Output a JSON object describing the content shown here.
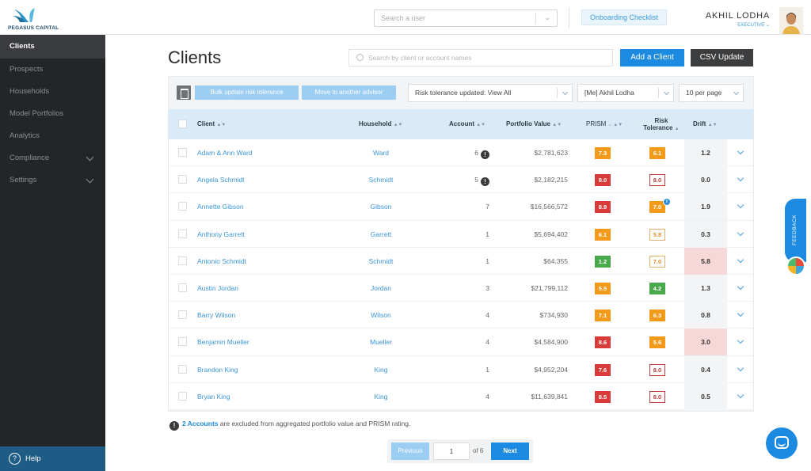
{
  "brand": {
    "name": "PEGASUS CAPITAL",
    "accent": "#1b8ae0",
    "sidebar_bg": "#242527"
  },
  "header": {
    "user_search_placeholder": "Search a user",
    "onboarding_label": "Onboarding Checklist",
    "user_name": "AKHIL LODHA",
    "user_role": "EXECUTIVE"
  },
  "sidebar": {
    "items": [
      {
        "label": "Clients",
        "active": true
      },
      {
        "label": "Prospects"
      },
      {
        "label": "Households"
      },
      {
        "label": "Model Portfolios"
      },
      {
        "label": "Analytics"
      },
      {
        "label": "Compliance",
        "expandable": true
      },
      {
        "label": "Settings",
        "expandable": true
      }
    ],
    "help_label": "Help"
  },
  "main": {
    "title": "Clients",
    "search_placeholder": "Search by client or account names",
    "add_client_label": "Add a Client",
    "csv_update_label": "CSV Update"
  },
  "toolbar": {
    "bulk_label": "Bulk update risk tolerance",
    "move_label": "Move to another advisor",
    "risk_filter": "Risk tolerance updated: View All",
    "advisor_filter": "[Me] Akhil Lodha",
    "per_page": "10 per page"
  },
  "table": {
    "columns": {
      "client": "Client",
      "household": "Household",
      "account": "Account",
      "value": "Portfolio Value",
      "prism": "PRISM",
      "risk": [
        "Risk",
        "Tolerance"
      ],
      "drift": "Drift"
    },
    "rows": [
      {
        "client": "Adam & Ann Ward",
        "household": "Ward",
        "account": "6",
        "account_alert": true,
        "value": "$2,781,623",
        "prism": "7.3",
        "prism_style": "orange",
        "risk": "6.1",
        "risk_style": "orange",
        "risk_alert": false,
        "drift": "1.2",
        "drift_high": false
      },
      {
        "client": "Angela Schmidt",
        "household": "Schmidt",
        "account": "5",
        "account_alert": true,
        "value": "$2,182,215",
        "prism": "8.0",
        "prism_style": "red",
        "risk": "8.0",
        "risk_style": "out-red",
        "risk_alert": false,
        "drift": "0.0",
        "drift_high": false
      },
      {
        "client": "Annette Gibson",
        "household": "Gibson",
        "account": "7",
        "account_alert": false,
        "value": "$16,566,572",
        "prism": "8.9",
        "prism_style": "red",
        "risk": "7.0",
        "risk_style": "orange",
        "risk_alert": true,
        "drift": "1.9",
        "drift_high": false
      },
      {
        "client": "Anthony Garrett",
        "household": "Garrett",
        "account": "1",
        "account_alert": false,
        "value": "$5,694,402",
        "prism": "6.1",
        "prism_style": "orange",
        "risk": "5.8",
        "risk_style": "out-orange",
        "risk_alert": false,
        "drift": "0.3",
        "drift_high": false
      },
      {
        "client": "Antonio Schmidt",
        "household": "Schmidt",
        "account": "1",
        "account_alert": false,
        "value": "$64,355",
        "prism": "1.2",
        "prism_style": "green",
        "risk": "7.0",
        "risk_style": "out-orange",
        "risk_alert": false,
        "drift": "5.8",
        "drift_high": true
      },
      {
        "client": "Austin Jordan",
        "household": "Jordan",
        "account": "3",
        "account_alert": false,
        "value": "$21,799,112",
        "prism": "5.5",
        "prism_style": "orange",
        "risk": "4.2",
        "risk_style": "green",
        "risk_alert": false,
        "drift": "1.3",
        "drift_high": false
      },
      {
        "client": "Barry Wilson",
        "household": "Wilson",
        "account": "4",
        "account_alert": false,
        "value": "$734,930",
        "prism": "7.1",
        "prism_style": "orange",
        "risk": "6.3",
        "risk_style": "orange",
        "risk_alert": false,
        "drift": "0.8",
        "drift_high": false
      },
      {
        "client": "Benjamin Mueller",
        "household": "Mueller",
        "account": "4",
        "account_alert": false,
        "value": "$4,584,900",
        "prism": "8.6",
        "prism_style": "red",
        "risk": "5.6",
        "risk_style": "orange",
        "risk_alert": false,
        "drift": "3.0",
        "drift_high": true
      },
      {
        "client": "Brandon King",
        "household": "King",
        "account": "1",
        "account_alert": false,
        "value": "$4,952,204",
        "prism": "7.6",
        "prism_style": "red",
        "risk": "8.0",
        "risk_style": "out-red",
        "risk_alert": false,
        "drift": "0.4",
        "drift_high": false
      },
      {
        "client": "Bryan King",
        "household": "King",
        "account": "4",
        "account_alert": false,
        "value": "$11,639,841",
        "prism": "8.5",
        "prism_style": "red",
        "risk": "8.0",
        "risk_style": "out-red",
        "risk_alert": false,
        "drift": "0.5",
        "drift_high": false
      }
    ]
  },
  "footnote": {
    "link": "2 Accounts",
    "text": " are excluded from aggregated portfolio value and PRISM rating."
  },
  "pagination": {
    "prev": "Previous",
    "page": "1",
    "of": "of 6",
    "next": "Next"
  },
  "feedback_label": "FEEDBACK"
}
